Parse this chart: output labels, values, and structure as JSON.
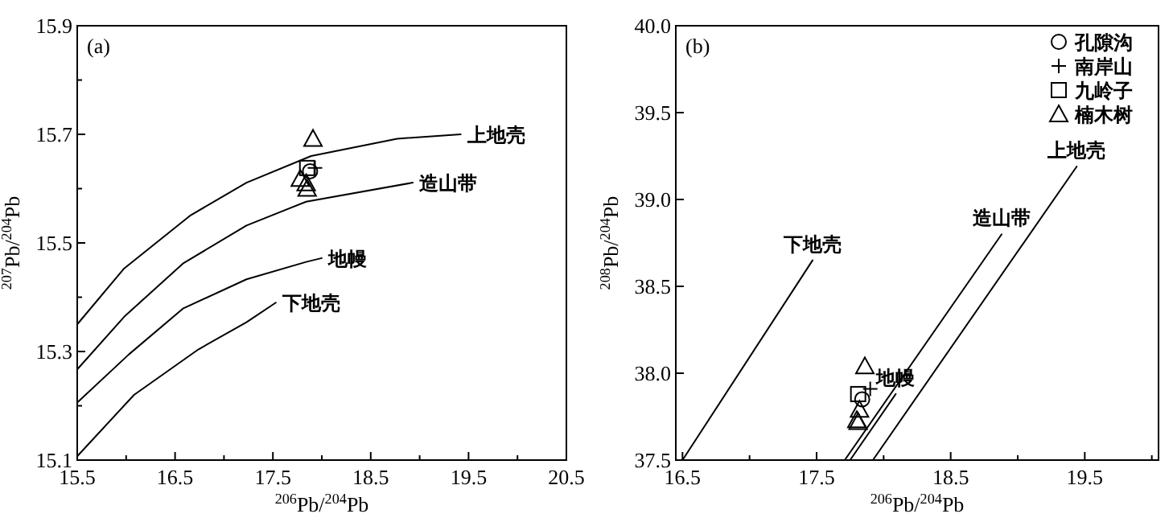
{
  "chart_data": [
    {
      "type": "scatter",
      "xlabel": "$^{206}$Pb/$^{204}$Pb",
      "ylabel": "$^{207}$Pb/$^{204}$Pb",
      "xlim": [
        15.5,
        20.5
      ],
      "ylim": [
        15.1,
        15.9
      ],
      "xticks": [
        15.5,
        {
          "value": 16,
          "label": null
        },
        16.5,
        {
          "value": 17,
          "label": null
        },
        17.5,
        {
          "value": 18,
          "label": null
        },
        18.5,
        {
          "value": 19,
          "label": null
        },
        19.5,
        {
          "value": 20,
          "label": null
        },
        20.5
      ],
      "yticks": [
        15.1,
        {
          "value": 15.2,
          "label": null
        },
        15.3,
        {
          "value": 15.4,
          "label": null
        },
        15.5,
        {
          "value": 15.6,
          "label": null
        },
        15.7,
        {
          "value": 15.8,
          "label": null
        },
        15.9
      ],
      "annotations": [
        "(a)"
      ],
      "series": [
        {
          "type": "line",
          "name": "上地壳",
          "color": "#000000",
          "x": [
            15.5,
            15.98,
            16.66,
            17.23,
            17.89,
            18.77,
            19.42
          ],
          "values": [
            15.35,
            15.453,
            15.551,
            15.611,
            15.66,
            15.692,
            15.7
          ]
        },
        {
          "type": "line",
          "name": "造山带",
          "color": "#000000",
          "x": [
            15.5,
            15.98,
            16.58,
            17.23,
            17.84,
            18.93
          ],
          "values": [
            15.267,
            15.364,
            15.462,
            15.532,
            15.576,
            15.611
          ]
        },
        {
          "type": "line",
          "name": "地幔",
          "color": "#000000",
          "x": [
            15.5,
            16.03,
            16.58,
            17.23,
            17.84,
            18.0
          ],
          "values": [
            15.206,
            15.295,
            15.379,
            15.433,
            15.465,
            15.472
          ]
        },
        {
          "type": "line",
          "name": "下地壳",
          "color": "#000000",
          "x": [
            15.5,
            16.08,
            16.74,
            17.23,
            17.53
          ],
          "values": [
            15.107,
            15.22,
            15.304,
            15.354,
            15.39
          ]
        },
        {
          "marker": "circle",
          "color": "#000000",
          "x": [
            17.88
          ],
          "values": [
            15.632
          ]
        },
        {
          "marker": "cross",
          "color": "#000000",
          "x": [
            17.93
          ],
          "values": [
            15.638
          ]
        },
        {
          "marker": "square",
          "color": "#000000",
          "x": [
            17.85
          ],
          "values": [
            15.638
          ]
        },
        {
          "marker": "triangle",
          "color": "#000000",
          "x": [
            17.91,
            17.78,
            17.84,
            17.85
          ],
          "values": [
            15.692,
            15.618,
            15.61,
            15.6
          ]
        }
      ]
    },
    {
      "type": "scatter",
      "xlabel": "$^{206}$Pb/$^{204}$Pb",
      "ylabel": "$^{208}$Pb/$^{204}$Pb",
      "xlim": [
        16.45,
        20.05
      ],
      "ylim": [
        37.5,
        40.0
      ],
      "xticks": [
        16.5,
        {
          "value": 17,
          "label": null
        },
        17.5,
        {
          "value": 18,
          "label": null
        },
        18.5,
        {
          "value": 19,
          "label": null
        },
        19.5,
        {
          "value": 20,
          "label": null
        }
      ],
      "yticks": [
        37.5,
        {
          "value": 38,
          "label": "38.0"
        },
        38.5,
        {
          "value": 39,
          "label": "39.0"
        },
        39.5,
        {
          "value": 40,
          "label": "40.0"
        }
      ],
      "legend": "top right",
      "annotations": [
        "(b)"
      ],
      "series": [
        {
          "type": "line",
          "name": "下地壳",
          "color": "#000000",
          "x": [
            16.5,
            17.47
          ],
          "values": [
            37.5,
            38.65
          ]
        },
        {
          "type": "line",
          "name": "造山带",
          "color": "#000000",
          "x": [
            17.71,
            18.88
          ],
          "values": [
            37.5,
            38.8
          ]
        },
        {
          "type": "line",
          "name": "地幔",
          "color": "#000000",
          "x": [
            17.75,
            18.09
          ],
          "values": [
            37.5,
            37.88
          ]
        },
        {
          "type": "line",
          "name": "上地壳",
          "color": "#000000",
          "x": [
            17.92,
            19.44
          ],
          "values": [
            37.5,
            39.19
          ]
        },
        {
          "name": "孔隙沟",
          "marker": "circle",
          "color": "#000000",
          "x": [
            17.84
          ],
          "values": [
            37.85
          ]
        },
        {
          "name": "南岸山",
          "marker": "cross",
          "color": "#000000",
          "x": [
            17.9
          ],
          "values": [
            37.91
          ]
        },
        {
          "name": "九岭子",
          "marker": "square",
          "color": "#000000",
          "x": [
            17.81
          ],
          "values": [
            37.88
          ]
        },
        {
          "name": "楠木树",
          "marker": "triangle",
          "color": "#000000",
          "x": [
            17.86,
            17.82,
            17.8,
            17.81
          ],
          "values": [
            38.04,
            37.79,
            37.73,
            37.72
          ]
        }
      ]
    }
  ]
}
